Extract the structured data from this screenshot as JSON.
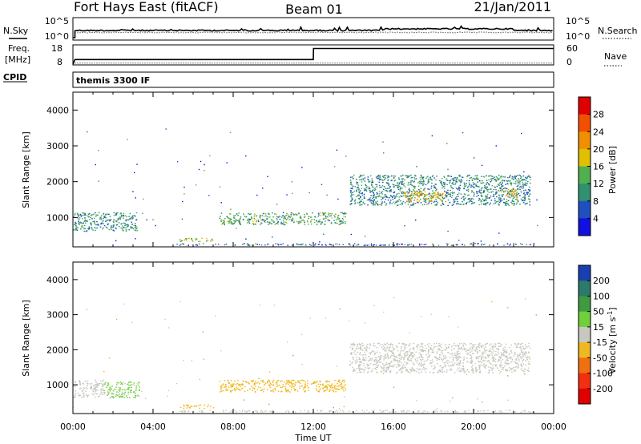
{
  "header": {
    "station": "Fort Hays East (fitACF)",
    "beam": "Beam 01",
    "date": "21/Jan/2011"
  },
  "sky_panel": {
    "left_label": "N.Sky",
    "right_label": "N.Search",
    "left_ticks": [
      "10^5",
      "10^0"
    ],
    "right_ticks": [
      "10^5",
      "10^0"
    ]
  },
  "freq_panel": {
    "left_label_1": "Freq.",
    "left_label_2": "[MHz]",
    "right_label": "Nave",
    "left_ticks": [
      "18",
      "8"
    ],
    "right_ticks": [
      "60",
      "0"
    ]
  },
  "cpid_panel": {
    "label": "CPID",
    "program": "themis 3300 IF"
  },
  "x_axis": {
    "label": "Time UT",
    "ticks": [
      "00:00",
      "04:00",
      "08:00",
      "12:00",
      "16:00",
      "20:00",
      "00:00"
    ]
  },
  "y_axis": {
    "label": "Slant Range [km]",
    "ticks": [
      "1000",
      "2000",
      "3000",
      "4000"
    ]
  },
  "power_colorbar": {
    "label": "Power [dB]",
    "ticks": [
      "4",
      "8",
      "12",
      "16",
      "20",
      "24",
      "28"
    ],
    "colors": [
      "#1010e0",
      "#2050c0",
      "#309070",
      "#50b050",
      "#e0c000",
      "#f09000",
      "#f05000",
      "#e00000"
    ]
  },
  "velocity_colorbar": {
    "label_main": "Velocity [m s",
    "label_exp": "-1",
    "label_end": "]",
    "ticks": [
      "200",
      "100",
      "50",
      "15",
      "-15",
      "-50",
      "-100",
      "-200"
    ],
    "colors": [
      "#1a3fb0",
      "#2b7a6a",
      "#3f9a40",
      "#6fd03a",
      "#c8c8c0",
      "#f0b820",
      "#f07010",
      "#f03010",
      "#e00000"
    ]
  },
  "chart_data": [
    {
      "type": "line",
      "name": "sky_search_noise",
      "x_unit": "hours UT",
      "x": [
        0,
        0.1,
        0.5,
        2,
        4,
        6,
        8,
        10,
        12,
        14,
        16,
        18,
        20,
        22,
        24
      ],
      "series": [
        {
          "name": "N.Sky",
          "values": [
            1,
            3000,
            3000,
            3000,
            3000,
            3000,
            3000,
            3000,
            3000,
            3000,
            4000,
            4000,
            4000,
            3000,
            3000
          ]
        },
        {
          "name": "N.Search",
          "values": [
            1,
            800,
            800,
            800,
            800,
            800,
            800,
            800,
            800,
            800,
            800,
            800,
            800,
            800,
            800
          ]
        }
      ],
      "ylim": [
        1,
        100000
      ],
      "log_scale": true
    },
    {
      "type": "line",
      "name": "frequency_nave",
      "x_unit": "hours UT",
      "x": [
        0,
        0.1,
        12,
        12.01,
        24
      ],
      "series": [
        {
          "name": "Freq.",
          "values": [
            8,
            10.5,
            10.5,
            16.5,
            16.5
          ]
        },
        {
          "name": "Nave",
          "values": [
            0,
            3,
            3,
            3,
            3
          ]
        }
      ],
      "ylim_freq": [
        8,
        18
      ],
      "ylim_nave": [
        0,
        60
      ]
    },
    {
      "type": "heatmap",
      "name": "power",
      "xlim_hours": [
        0,
        24
      ],
      "ylim_km": [
        180,
        4500
      ],
      "zlim_db": [
        0,
        30
      ],
      "echo_regions": [
        {
          "t0": 0.0,
          "t1": 3.2,
          "r0": 630,
          "r1": 1150,
          "power": 10
        },
        {
          "t0": 5.3,
          "t1": 7.0,
          "r0": 340,
          "r1": 440,
          "power": 14
        },
        {
          "t0": 7.3,
          "t1": 13.6,
          "r0": 810,
          "r1": 1150,
          "power": 12
        },
        {
          "t0": 13.8,
          "t1": 22.8,
          "r0": 1350,
          "r1": 2200,
          "power": 10
        },
        {
          "t0": 16.5,
          "t1": 18.6,
          "r0": 1450,
          "r1": 1750,
          "power": 20
        },
        {
          "t0": 21.2,
          "t1": 22.2,
          "r0": 1550,
          "r1": 1800,
          "power": 18
        }
      ]
    },
    {
      "type": "heatmap",
      "name": "velocity",
      "xlim_hours": [
        0,
        24
      ],
      "ylim_km": [
        180,
        4500
      ],
      "zlim_ms": [
        -250,
        250
      ],
      "echo_regions": [
        {
          "t0": 0.0,
          "t1": 1.5,
          "r0": 650,
          "r1": 1150,
          "velocity": 5
        },
        {
          "t0": 1.5,
          "t1": 3.3,
          "r0": 640,
          "r1": 1100,
          "velocity": 20
        },
        {
          "t0": 5.3,
          "t1": 7.0,
          "r0": 340,
          "r1": 440,
          "velocity": -30
        },
        {
          "t0": 7.3,
          "t1": 11.0,
          "r0": 810,
          "r1": 1150,
          "velocity": -30
        },
        {
          "t0": 11.0,
          "t1": 13.6,
          "r0": 810,
          "r1": 1150,
          "velocity": -30
        },
        {
          "t0": 13.8,
          "t1": 22.8,
          "r0": 1350,
          "r1": 2200,
          "velocity": 0
        }
      ]
    }
  ]
}
